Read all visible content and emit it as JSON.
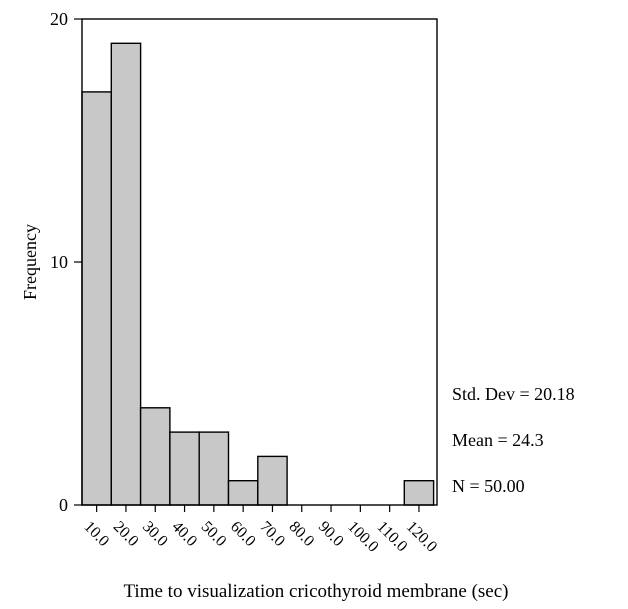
{
  "chart_data": {
    "type": "bar",
    "xlabel": "Time to visualization cricothyroid membrane (sec)",
    "ylabel": "Frequency",
    "categories": [
      "10.0",
      "20.0",
      "30.0",
      "40.0",
      "50.0",
      "60.0",
      "70.0",
      "80.0",
      "90.0",
      "100.0",
      "110.0",
      "120.0"
    ],
    "values": [
      17,
      19,
      4,
      3,
      3,
      1,
      2,
      0,
      0,
      0,
      0,
      1
    ],
    "ylim": [
      0,
      20
    ],
    "yticks": [
      "0",
      "10",
      "20"
    ],
    "grid": false,
    "stats": {
      "std_dev": "Std. Dev = 20.18",
      "mean": "Mean = 24.3",
      "n": "N = 50.00"
    }
  }
}
